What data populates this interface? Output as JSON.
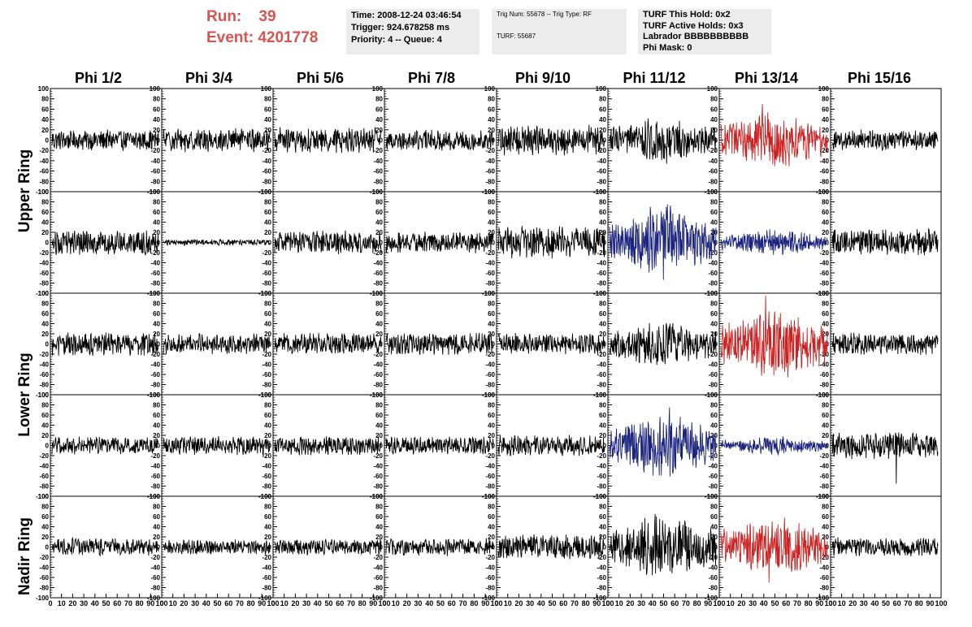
{
  "run_label": "Run:",
  "run_value": "39",
  "event_label": "Event:",
  "event_value": "4201778",
  "info1": {
    "time": "Time: 2008-12-24 03:46:54",
    "trigger": "Trigger: 924.678258 ms",
    "priority": "Priority: 4 -- Queue: 4"
  },
  "info2": {
    "trig": "Trig Num: 55678 -- Trig Type: RF",
    "turf": "TURF: 55687"
  },
  "info3": {
    "hold": "TURF This Hold: 0x2",
    "active": "TURF Active Holds: 0x3",
    "labrador": "Labrador BBBBBBBBBB",
    "phimask": "Phi Mask: 0"
  },
  "columns": [
    "Phi 1/2",
    "Phi 3/4",
    "Phi 5/6",
    "Phi 7/8",
    "Phi 9/10",
    "Phi 11/12",
    "Phi 13/14",
    "Phi 15/16"
  ],
  "ring_labels": {
    "upper": "Upper Ring",
    "lower": "Lower Ring",
    "nadir": "Nadir Ring"
  },
  "colors": {
    "info_text": "#d9534f",
    "trace_default": "#000000",
    "trace_red": "#cc2222",
    "trace_blue": "#1a237e"
  },
  "chart_data": {
    "type": "line",
    "description_axes": "each panel plots waveform amplitude vs time sample",
    "ylim": [
      -100,
      100
    ],
    "y_ticks": [
      -100,
      -80,
      -60,
      -40,
      -20,
      0,
      20,
      40,
      60,
      80,
      100
    ],
    "xlim": [
      0,
      100
    ],
    "x_ticks": [
      0,
      10,
      20,
      30,
      40,
      50,
      60,
      70,
      80,
      90,
      100
    ],
    "x_tick_labels_panel": [
      "0",
      "10",
      "20",
      "30",
      "40",
      "50",
      "60",
      "70",
      "80",
      "90",
      "100"
    ],
    "samples_per_trace": 260,
    "panels": [
      {
        "row": 0,
        "col": 0,
        "amp": 14,
        "color": "black"
      },
      {
        "row": 0,
        "col": 1,
        "amp": 16,
        "color": "black"
      },
      {
        "row": 0,
        "col": 2,
        "amp": 17,
        "color": "black"
      },
      {
        "row": 0,
        "col": 3,
        "amp": 14,
        "color": "black"
      },
      {
        "row": 0,
        "col": 4,
        "amp": 20,
        "color": "black"
      },
      {
        "row": 0,
        "col": 5,
        "amp": 28,
        "color": "black"
      },
      {
        "row": 0,
        "col": 6,
        "amp": 35,
        "color": "red",
        "peak": 70
      },
      {
        "row": 0,
        "col": 7,
        "amp": 14,
        "color": "black"
      },
      {
        "row": 1,
        "col": 0,
        "amp": 17,
        "color": "black"
      },
      {
        "row": 1,
        "col": 1,
        "amp": 4,
        "color": "black"
      },
      {
        "row": 1,
        "col": 2,
        "amp": 16,
        "color": "black"
      },
      {
        "row": 1,
        "col": 3,
        "amp": 15,
        "color": "black"
      },
      {
        "row": 1,
        "col": 4,
        "amp": 22,
        "color": "black"
      },
      {
        "row": 1,
        "col": 5,
        "amp": 45,
        "color": "blue",
        "peak": 70
      },
      {
        "row": 1,
        "col": 6,
        "amp": 17,
        "color": "blue"
      },
      {
        "row": 1,
        "col": 7,
        "amp": 18,
        "color": "black"
      },
      {
        "row": 2,
        "col": 0,
        "amp": 16,
        "color": "black"
      },
      {
        "row": 2,
        "col": 1,
        "amp": 14,
        "color": "black"
      },
      {
        "row": 2,
        "col": 2,
        "amp": 15,
        "color": "black"
      },
      {
        "row": 2,
        "col": 3,
        "amp": 15,
        "color": "black"
      },
      {
        "row": 2,
        "col": 4,
        "amp": 15,
        "color": "black"
      },
      {
        "row": 2,
        "col": 5,
        "amp": 28,
        "color": "black"
      },
      {
        "row": 2,
        "col": 6,
        "amp": 45,
        "color": "red",
        "peak": 95
      },
      {
        "row": 2,
        "col": 7,
        "amp": 15,
        "color": "black"
      },
      {
        "row": 3,
        "col": 0,
        "amp": 12,
        "color": "black"
      },
      {
        "row": 3,
        "col": 1,
        "amp": 13,
        "color": "black"
      },
      {
        "row": 3,
        "col": 2,
        "amp": 13,
        "color": "black"
      },
      {
        "row": 3,
        "col": 3,
        "amp": 12,
        "color": "black"
      },
      {
        "row": 3,
        "col": 4,
        "amp": 14,
        "color": "black"
      },
      {
        "row": 3,
        "col": 5,
        "amp": 40,
        "color": "blue",
        "peak": 75
      },
      {
        "row": 3,
        "col": 6,
        "amp": 12,
        "color": "blue"
      },
      {
        "row": 3,
        "col": 7,
        "amp": 18,
        "color": "black",
        "peak": -75
      },
      {
        "row": 4,
        "col": 0,
        "amp": 12,
        "color": "black"
      },
      {
        "row": 4,
        "col": 1,
        "amp": 10,
        "color": "black"
      },
      {
        "row": 4,
        "col": 2,
        "amp": 11,
        "color": "black"
      },
      {
        "row": 4,
        "col": 3,
        "amp": 12,
        "color": "black"
      },
      {
        "row": 4,
        "col": 4,
        "amp": 17,
        "color": "black"
      },
      {
        "row": 4,
        "col": 5,
        "amp": 40,
        "color": "black",
        "peak": 65
      },
      {
        "row": 4,
        "col": 6,
        "amp": 38,
        "color": "red",
        "peak": -70
      },
      {
        "row": 4,
        "col": 7,
        "amp": 13,
        "color": "black"
      }
    ]
  }
}
